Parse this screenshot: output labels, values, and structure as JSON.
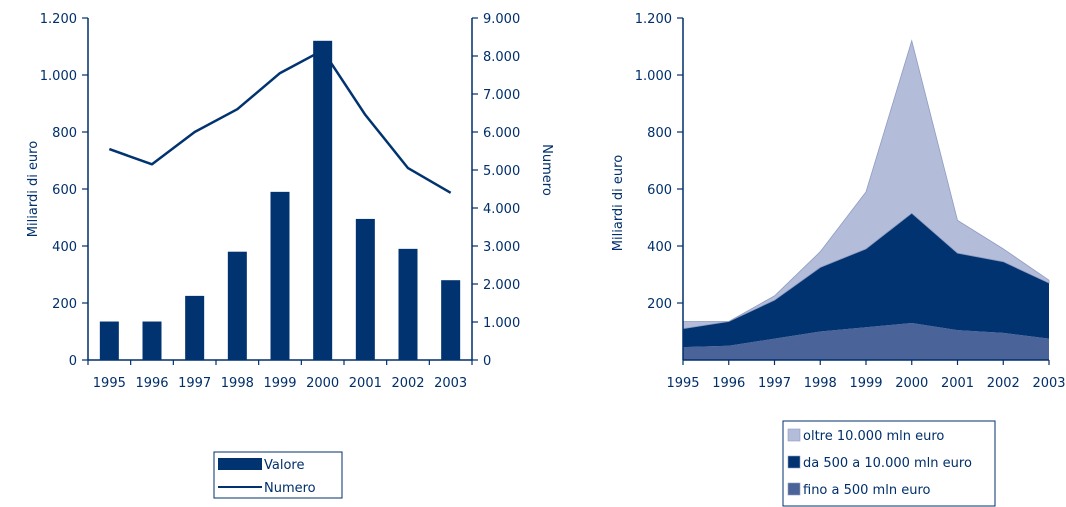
{
  "chart_data": [
    {
      "type": "bar",
      "categories": [
        "1995",
        "1996",
        "1997",
        "1998",
        "1999",
        "2000",
        "2001",
        "2002",
        "2003"
      ],
      "series": [
        {
          "name": "Valore",
          "type": "bar",
          "axis": "left",
          "values": [
            135,
            135,
            225,
            380,
            590,
            1120,
            495,
            390,
            280
          ]
        },
        {
          "name": "Numero",
          "type": "line",
          "axis": "right",
          "values": [
            5550,
            5150,
            6000,
            6600,
            7550,
            8150,
            6450,
            5050,
            4400
          ]
        }
      ],
      "ylabel": "Miliardi di euro",
      "ylabel_right": "Numero",
      "ylim": [
        0,
        1200
      ],
      "ylim_right": [
        0,
        9000
      ],
      "yticks": [
        0,
        200,
        400,
        600,
        800,
        1000,
        1200
      ],
      "yticks_right": [
        0,
        1000,
        2000,
        3000,
        4000,
        5000,
        6000,
        7000,
        8000,
        9000
      ],
      "ytick_labels": [
        "0",
        "200",
        "400",
        "600",
        "800",
        "1.000",
        "1.200"
      ],
      "ytick_labels_right": [
        "0",
        "1.000",
        "2.000",
        "3.000",
        "4.000",
        "5.000",
        "6.000",
        "7.000",
        "8.000",
        "9.000"
      ],
      "legend": {
        "position": "bottom",
        "items": [
          "Valore",
          "Numero"
        ]
      },
      "grid": false
    },
    {
      "type": "area",
      "stacked": true,
      "x": [
        "1995",
        "1996",
        "1997",
        "1998",
        "1999",
        "2000",
        "2001",
        "2002",
        "2003"
      ],
      "series": [
        {
          "name": "fino a 500 mln euro",
          "values": [
            45,
            50,
            75,
            100,
            115,
            130,
            105,
            95,
            75
          ]
        },
        {
          "name": "da 500 a 10.000 mln euro",
          "values": [
            65,
            85,
            135,
            225,
            275,
            385,
            270,
            250,
            195
          ]
        },
        {
          "name": "oltre 10.000 mln euro",
          "values": [
            25,
            0,
            15,
            55,
            200,
            605,
            115,
            45,
            10
          ]
        }
      ],
      "ylabel": "Miliardi di euro",
      "ylim": [
        0,
        1200
      ],
      "yticks": [
        200,
        400,
        600,
        800,
        1000,
        1200
      ],
      "ytick_labels": [
        "200",
        "400",
        "600",
        "800",
        "1.000",
        "1.200"
      ],
      "legend": {
        "position": "bottom",
        "items": [
          "oltre 10.000 mln euro",
          "da 500 a 10.000 mln euro",
          "fino a 500 mln euro"
        ]
      },
      "grid": false
    }
  ],
  "colors": {
    "axis": "#002f6c",
    "bar": "#003370",
    "line": "#003370",
    "area_bottom": "#4a6399",
    "area_middle": "#003370",
    "area_top": "#b3bcd9"
  }
}
